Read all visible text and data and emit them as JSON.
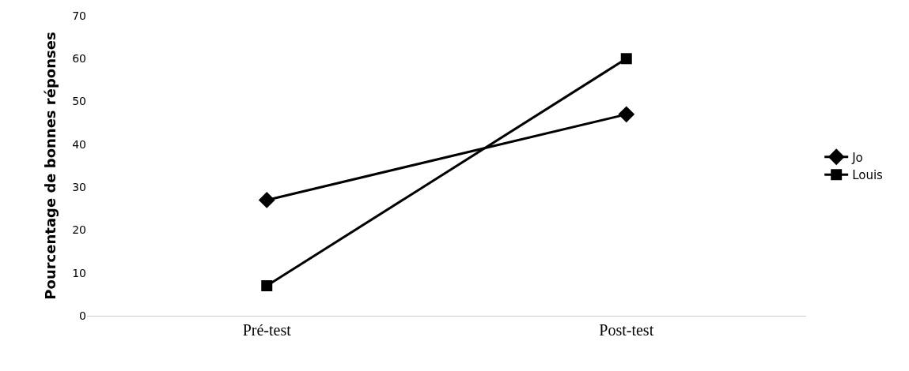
{
  "chart_data": {
    "type": "line",
    "ylabel": "Pourcentage de bonnes réponses",
    "categories": [
      "Pré-test",
      "Post-test"
    ],
    "series": [
      {
        "name": "Jo",
        "color": "#000000",
        "marker": "diamond",
        "values": [
          27,
          47
        ]
      },
      {
        "name": "Louis",
        "color": "#000000",
        "marker": "square",
        "values": [
          7,
          60
        ]
      }
    ],
    "ylim": [
      0,
      70
    ],
    "yticks": [
      0,
      10,
      20,
      30,
      40,
      50,
      60,
      70
    ],
    "legend": "right",
    "line_style": "solid"
  }
}
